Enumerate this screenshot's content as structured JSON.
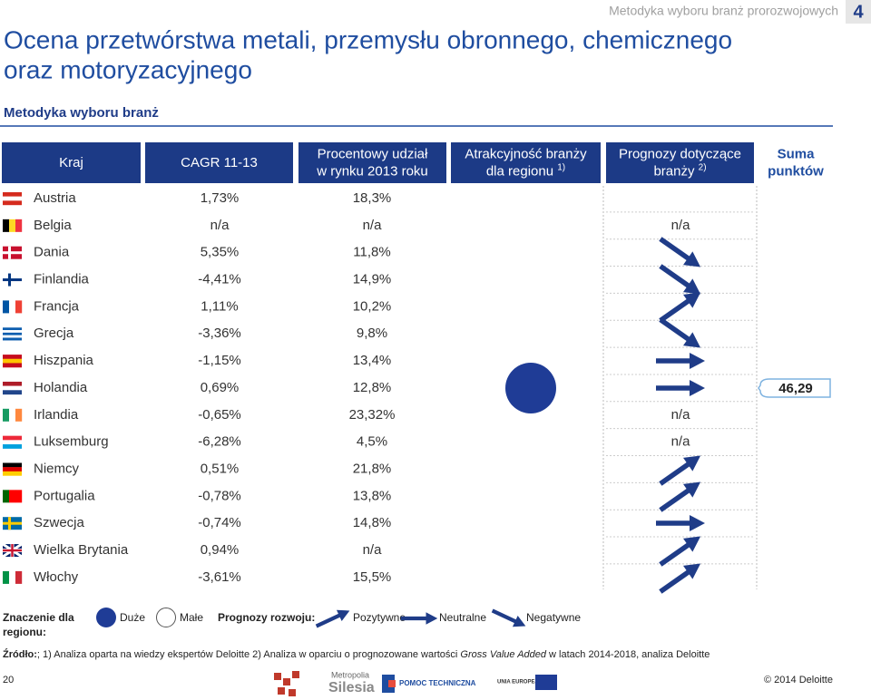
{
  "header": {
    "section": "Metodyka wyboru branż prorozwojowych",
    "page": "4",
    "title_lines": [
      "Ocena przetwórstwa metali, przemysłu obronnego, chemicznego",
      "oraz motoryzacyjnego"
    ],
    "subtitle": "Metodyka wyboru branż"
  },
  "table": {
    "columns": [
      {
        "lines": [
          "Kraj"
        ]
      },
      {
        "lines": [
          "CAGR 11-13"
        ]
      },
      {
        "lines": [
          "Procentowy udział",
          "w rynku 2013 roku"
        ]
      },
      {
        "lines": [
          "Atrakcyjność branży",
          "dla regionu"
        ],
        "sup": "1)"
      },
      {
        "lines": [
          "Prognozy dotyczące",
          "branży"
        ],
        "sup": "2)"
      },
      {
        "lines": [
          "Suma",
          "punktów"
        ]
      }
    ],
    "rows": [
      {
        "country": "Austria",
        "cagr": "1,73%",
        "share": "18,3%"
      },
      {
        "country": "Belgia",
        "cagr": "n/a",
        "share": "n/a",
        "forecast": "n/a"
      },
      {
        "country": "Dania",
        "cagr": "5,35%",
        "share": "11,8%"
      },
      {
        "country": "Finlandia",
        "cagr": "-4,41%",
        "share": "14,9%"
      },
      {
        "country": "Francja",
        "cagr": "1,11%",
        "share": "10,2%"
      },
      {
        "country": "Grecja",
        "cagr": "-3,36%",
        "share": "9,8%"
      },
      {
        "country": "Hiszpania",
        "cagr": "-1,15%",
        "share": "13,4%"
      },
      {
        "country": "Holandia",
        "cagr": "0,69%",
        "share": "12,8%"
      },
      {
        "country": "Irlandia",
        "cagr": "-0,65%",
        "share": "23,32%",
        "forecast": "n/a"
      },
      {
        "country": "Luksemburg",
        "cagr": "-6,28%",
        "share": "4,5%",
        "forecast": "n/a"
      },
      {
        "country": "Niemcy",
        "cagr": "0,51%",
        "share": "21,8%"
      },
      {
        "country": "Portugalia",
        "cagr": "-0,78%",
        "share": "13,8%"
      },
      {
        "country": "Szwecja",
        "cagr": "-0,74%",
        "share": "14,8%"
      },
      {
        "country": "Wielka Brytania",
        "cagr": "0,94%",
        "share": "n/a"
      },
      {
        "country": "Włochy",
        "cagr": "-3,61%",
        "share": "15,5%"
      }
    ],
    "total": "46,29"
  },
  "legend": {
    "region_lines": [
      "Znaczenie dla",
      "regionu:"
    ],
    "large": "Duże",
    "small": "Małe",
    "forecast_label": "Prognozy rozwoju:",
    "positive": "Pozytywne",
    "neutral": "Neutralne",
    "negative": "Negatywne"
  },
  "source": {
    "label": "Źródło:",
    "text": "; 1) Analiza oparta na wiedzy ekspertów Deloitte 2) Analiza w oparciu o prognozowane wartości ",
    "italic": "Gross Value Added",
    "tail": " w latach 2014-2018, analiza Deloitte"
  },
  "footer": {
    "page_number": "20",
    "copyright": "© 2014 Deloitte",
    "logo1_lines": [
      "Metropolia",
      "Silesia"
    ],
    "logo2": "POMOC TECHNICZNA",
    "logo3": "UNIA EUROPEJSKA"
  }
}
